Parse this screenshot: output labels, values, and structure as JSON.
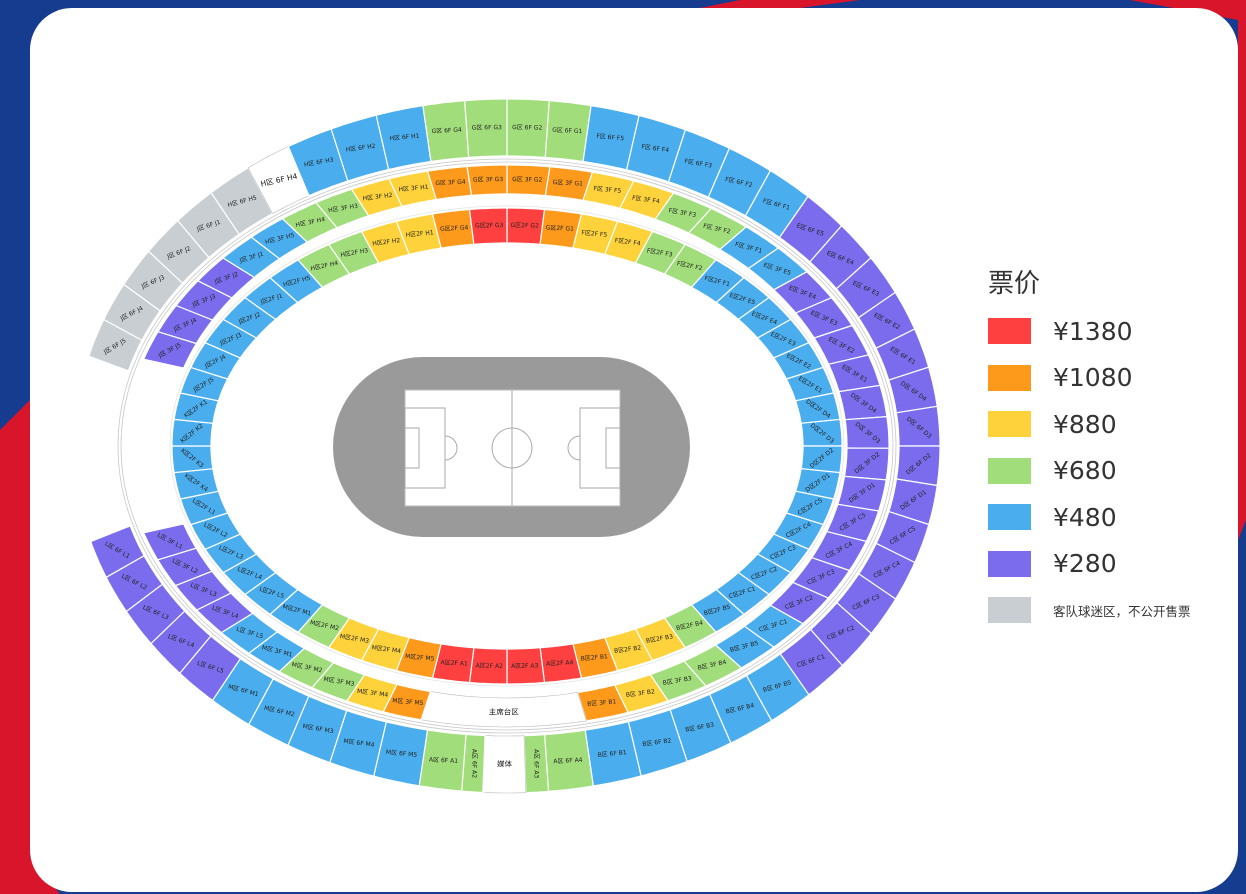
{
  "legend": {
    "title": "票价",
    "items": [
      {
        "tier": "r",
        "label": "¥1380",
        "color": "#fe4040"
      },
      {
        "tier": "o",
        "label": "¥1080",
        "color": "#fd9a1b"
      },
      {
        "tier": "y",
        "label": "¥880",
        "color": "#fed23a"
      },
      {
        "tier": "g",
        "label": "¥680",
        "color": "#a1dd7a"
      },
      {
        "tier": "b",
        "label": "¥480",
        "color": "#4aaded"
      },
      {
        "tier": "p",
        "label": "¥280",
        "color": "#7a6cec"
      },
      {
        "tier": "a",
        "label": "客队球迷区，不公开售票",
        "color": "#c9ced3"
      }
    ]
  },
  "colors": {
    "w": "#ffffff",
    "frame_blue": "#163c90",
    "frame_red": "#d8152a",
    "pitch": "#9a9a9a"
  },
  "sections": {
    "2F": [
      [
        "G区2F G2",
        "r"
      ],
      [
        "G区2F G1",
        "o"
      ],
      [
        "F区2F F5",
        "y"
      ],
      [
        "F区2F F4",
        "y"
      ],
      [
        "F区2F F3",
        "g"
      ],
      [
        "F区2F F2",
        "g"
      ],
      [
        "F区2F F1",
        "b"
      ],
      [
        "E区2F E5",
        "b"
      ],
      [
        "E区2F E4",
        "b"
      ],
      [
        "E区2F E3",
        "b"
      ],
      [
        "E区2F E2",
        "b"
      ],
      [
        "E区2F E1",
        "b"
      ],
      [
        "D区2F D4",
        "b"
      ],
      [
        "D区2F D3",
        "b"
      ],
      [
        "D区2F D2",
        "b"
      ],
      [
        "D区2F D1",
        "b"
      ],
      [
        "C区2F C5",
        "b"
      ],
      [
        "C区2F C4",
        "b"
      ],
      [
        "C区2F C3",
        "b"
      ],
      [
        "C区2F C2",
        "b"
      ],
      [
        "C区2F C1",
        "b"
      ],
      [
        "B区2F B5",
        "b"
      ],
      [
        "B区2F B4",
        "g"
      ],
      [
        "B区2F B3",
        "y"
      ],
      [
        "B区2F B2",
        "y"
      ],
      [
        "B区2F B1",
        "o"
      ],
      [
        "A区2F A4",
        "r"
      ],
      [
        "A区2F A3",
        "r"
      ],
      [
        "A区2F A2",
        "r"
      ],
      [
        "A区2F A1",
        "r"
      ],
      [
        "M区2F M5",
        "o"
      ],
      [
        "M区2F M4",
        "y"
      ],
      [
        "M区2F M3",
        "y"
      ],
      [
        "M区2F M2",
        "g"
      ],
      [
        "M区2F M1",
        "b"
      ],
      [
        "L区2F L5",
        "b"
      ],
      [
        "L区2F L4",
        "b"
      ],
      [
        "L区2F L3",
        "b"
      ],
      [
        "L区2F L2",
        "b"
      ],
      [
        "L区2F L1",
        "b"
      ],
      [
        "K区2F K4",
        "b"
      ],
      [
        "K区2F K3",
        "b"
      ],
      [
        "K区2F K2",
        "b"
      ],
      [
        "K区2F K1",
        "b"
      ],
      [
        "J区2F J5",
        "b"
      ],
      [
        "J区2F J4",
        "b"
      ],
      [
        "J区2F J3",
        "b"
      ],
      [
        "J区2F J2",
        "b"
      ],
      [
        "J区2F J1",
        "b"
      ],
      [
        "H区2F H5",
        "b"
      ],
      [
        "H区2F H4",
        "g"
      ],
      [
        "H区2F H3",
        "g"
      ],
      [
        "H区2F H2",
        "y"
      ],
      [
        "H区2F H1",
        "y"
      ],
      [
        "G区2F G4",
        "o"
      ],
      [
        "G区2F G3",
        "r"
      ]
    ],
    "3F": [
      [
        "G区 3F G2",
        "o"
      ],
      [
        "G区 3F G1",
        "o"
      ],
      [
        "F区 3F F5",
        "y"
      ],
      [
        "F区 3F F4",
        "y"
      ],
      [
        "F区 3F F3",
        "g"
      ],
      [
        "F区 3F F2",
        "g"
      ],
      [
        "F区 3F F1",
        "b"
      ],
      [
        "E区 3F E5",
        "b"
      ],
      [
        "E区 3F E4",
        "p"
      ],
      [
        "E区 3F E3",
        "p"
      ],
      [
        "E区 3F E2",
        "p"
      ],
      [
        "E区 3F E1",
        "p"
      ],
      [
        "D区 3F D4",
        "p"
      ],
      [
        "D区 3F D3",
        "p"
      ],
      [
        "D区 3F D2",
        "p"
      ],
      [
        "D区 3F D1",
        "p"
      ],
      [
        "C区 3F C5",
        "p"
      ],
      [
        "C区 3F C4",
        "p"
      ],
      [
        "C区 3F C3",
        "p"
      ],
      [
        "C区 3F C2",
        "p"
      ],
      [
        "C区 3F C1",
        "b"
      ],
      [
        "B区 3F B5",
        "b"
      ],
      [
        "B区 3F B4",
        "g"
      ],
      [
        "B区 3F B3",
        "g"
      ],
      [
        "B区 3F B2",
        "y"
      ],
      [
        "B区 3F B1",
        "o"
      ],
      [
        "主席台区",
        "w"
      ],
      [
        "M区 3F M5",
        "o"
      ],
      [
        "M区 3F M4",
        "y"
      ],
      [
        "M区 3F M3",
        "g"
      ],
      [
        "M区 3F M2",
        "g"
      ],
      [
        "M区 3F M1",
        "b"
      ],
      [
        "L区 3F L5",
        "b"
      ],
      [
        "L区 3F L4",
        "p"
      ],
      [
        "L区 3F L3",
        "p"
      ],
      [
        "L区 3F L2",
        "p"
      ],
      [
        "L区 3F L1",
        "p"
      ],
      [
        "J区 3F J5",
        "p"
      ],
      [
        "J区 3F J4",
        "p"
      ],
      [
        "J区 3F J3",
        "p"
      ],
      [
        "J区 3F J2",
        "p"
      ],
      [
        "J区 3F J1",
        "b"
      ],
      [
        "H区 3F H5",
        "b"
      ],
      [
        "H区 3F H4",
        "g"
      ],
      [
        "H区 3F H3",
        "g"
      ],
      [
        "H区 3F H2",
        "y"
      ],
      [
        "H区 3F H1",
        "y"
      ],
      [
        "G区 3F G4",
        "o"
      ],
      [
        "G区 3F G3",
        "o"
      ]
    ],
    "6F": [
      [
        "G区 6F G2",
        "g"
      ],
      [
        "G区 6F G1",
        "g"
      ],
      [
        "F区 6F F5",
        "b"
      ],
      [
        "F区 6F F4",
        "b"
      ],
      [
        "F区 6F F3",
        "b"
      ],
      [
        "F区 6F F2",
        "b"
      ],
      [
        "F区 6F F1",
        "b"
      ],
      [
        "E区 6F E5",
        "p"
      ],
      [
        "E区 6F E4",
        "p"
      ],
      [
        "E区 6F E3",
        "p"
      ],
      [
        "E区 6F E2",
        "p"
      ],
      [
        "E区 6F E1",
        "p"
      ],
      [
        "D区 6F D4",
        "p"
      ],
      [
        "D区 6F D3",
        "p"
      ],
      [
        "D区 6F D2",
        "p"
      ],
      [
        "D区 6F D1",
        "p"
      ],
      [
        "C区 6F C5",
        "p"
      ],
      [
        "C区 6F C4",
        "p"
      ],
      [
        "C区 6F C3",
        "p"
      ],
      [
        "C区 6F C2",
        "p"
      ],
      [
        "C区 6F C1",
        "p"
      ],
      [
        "B区 6F B5",
        "b"
      ],
      [
        "B区 6F B4",
        "b"
      ],
      [
        "B区 6F B3",
        "b"
      ],
      [
        "B区 6F B2",
        "b"
      ],
      [
        "B区 6F B1",
        "b"
      ],
      [
        "A区 6F A4",
        "g"
      ],
      [
        "A区 6F A3",
        "g"
      ],
      [
        "媒体",
        "w"
      ],
      [
        "A区 6F A2",
        "g"
      ],
      [
        "A区 6F A1",
        "g"
      ],
      [
        "M区 6F M5",
        "b"
      ],
      [
        "M区 6F M4",
        "b"
      ],
      [
        "M区 6F M3",
        "b"
      ],
      [
        "M区 6F M2",
        "b"
      ],
      [
        "M区 6F M1",
        "b"
      ],
      [
        "L区 6F L5",
        "p"
      ],
      [
        "L区 6F L4",
        "p"
      ],
      [
        "L区 6F L3",
        "p"
      ],
      [
        "L区 6F L2",
        "p"
      ],
      [
        "L区 6F L1",
        "p"
      ],
      [
        "J区 6F J5",
        "a"
      ],
      [
        "J区 6F J4",
        "a"
      ],
      [
        "J区 6F J3",
        "a"
      ],
      [
        "J区 6F J2",
        "a"
      ],
      [
        "J区 6F J1",
        "a"
      ],
      [
        "H区 6F H5",
        "a"
      ],
      [
        "H区 6F H4",
        "w"
      ],
      [
        "H区 6F H3",
        "b"
      ],
      [
        "H区 6F H2",
        "b"
      ],
      [
        "H区 6F H1",
        "b"
      ],
      [
        "G区 6F G4",
        "g"
      ],
      [
        "G区 6F G3",
        "g"
      ]
    ]
  }
}
